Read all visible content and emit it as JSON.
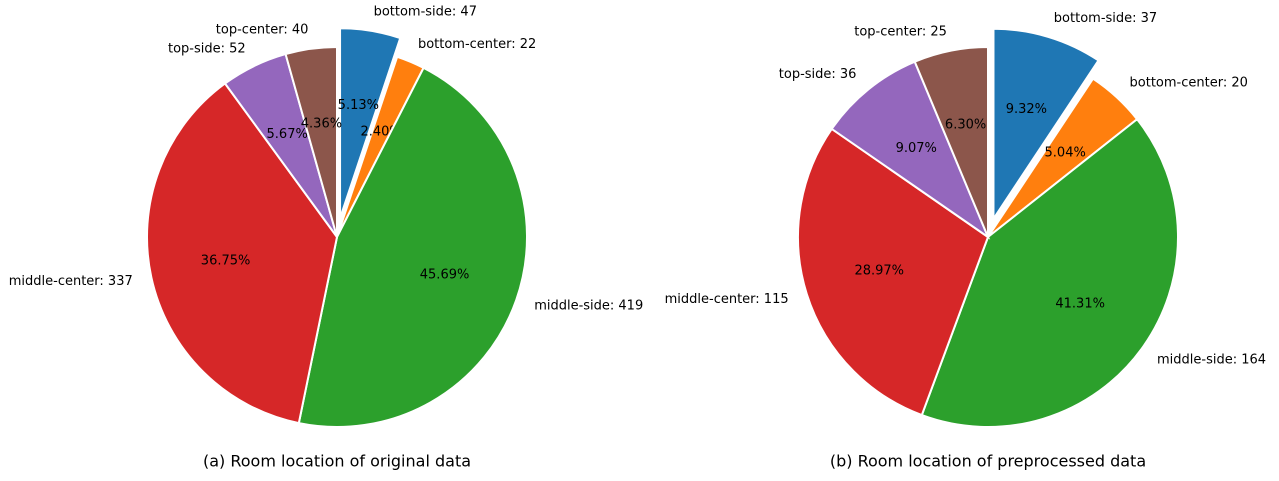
{
  "chart_data": [
    {
      "type": "pie",
      "title": "(a) Room location of original data",
      "categories": [
        "bottom-side: 47",
        "bottom-center: 22",
        "middle-side: 419",
        "middle-center: 337",
        "top-side: 52",
        "top-center: 40"
      ],
      "values": [
        5.13,
        2.4,
        45.69,
        36.75,
        5.67,
        4.36
      ],
      "value_labels": [
        "5.13%",
        "2.40%",
        "45.69%",
        "36.75%",
        "5.67%",
        "4.36%"
      ],
      "colors": [
        "#1f77b4",
        "#ff7f0e",
        "#2ca02c",
        "#d62728",
        "#9467bd",
        "#8c564b"
      ],
      "explode": [
        0.1,
        0,
        0,
        0,
        0,
        0
      ]
    },
    {
      "type": "pie",
      "title": "(b) Room location of preprocessed data",
      "categories": [
        "bottom-side: 37",
        "bottom-center: 20",
        "middle-side: 164",
        "middle-center: 115",
        "top-side: 36",
        "top-center: 25"
      ],
      "values": [
        9.32,
        5.04,
        41.31,
        28.97,
        9.07,
        6.3
      ],
      "value_labels": [
        "9.32%",
        "5.04%",
        "41.31%",
        "28.97%",
        "9.07%",
        "6.30%"
      ],
      "colors": [
        "#1f77b4",
        "#ff7f0e",
        "#2ca02c",
        "#d62728",
        "#9467bd",
        "#8c564b"
      ],
      "explode": [
        0.1,
        0,
        0,
        0,
        0,
        0
      ]
    }
  ]
}
